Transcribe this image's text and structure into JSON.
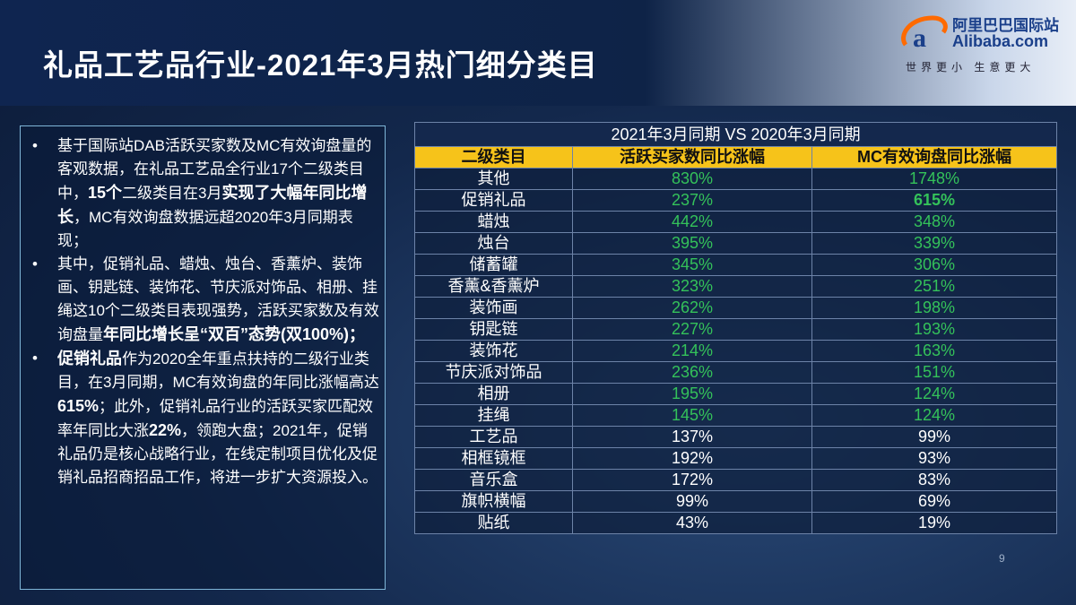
{
  "header": {
    "title": "礼品工艺品行业-2021年3月热门细分类目",
    "logo": {
      "cn": "阿里巴巴国际站",
      "en": "Alibaba.com",
      "slogan": "世界更小 生意更大"
    }
  },
  "bullets": [
    [
      {
        "text": "基于国际站DAB活跃买家数及MC有效询盘量的客观数据，在礼品工艺品全行业17个二级类目中，",
        "bold": false
      },
      {
        "text": "15个",
        "bold": true
      },
      {
        "text": "二级类目在3月",
        "bold": false
      },
      {
        "text": "实现了大幅年同比增长",
        "bold": true
      },
      {
        "text": "，MC有效询盘数据远超2020年3月同期表现；",
        "bold": false
      }
    ],
    [
      {
        "text": "其中，促销礼品、蜡烛、烛台、香薰炉、装饰画、钥匙链、装饰花、节庆派对饰品、相册、挂绳这10个二级类目表现强势，活跃买家数及有效询盘量",
        "bold": false
      },
      {
        "text": "年同比增长呈“双百”态势(双100%)；",
        "bold": true
      }
    ],
    [
      {
        "text": "促销礼品",
        "bold": true
      },
      {
        "text": "作为2020全年重点扶持的二级行业类目，在3月同期，MC有效询盘的年同比涨幅高达",
        "bold": false
      },
      {
        "text": "615%",
        "bold": true
      },
      {
        "text": "；此外，促销礼品行业的活跃买家匹配效率年同比大涨",
        "bold": false
      },
      {
        "text": "22%",
        "bold": true
      },
      {
        "text": "，领跑大盘；2021年，促销礼品仍是核心战略行业，在线定制项目优化及促销礼品招商招品工作，将进一步扩大资源投入。",
        "bold": false
      }
    ]
  ],
  "table": {
    "caption": "2021年3月同期 VS 2020年3月同期",
    "columns": [
      "二级类目",
      "活跃买家数同比涨幅",
      "MC有效询盘同比涨幅"
    ],
    "rows": [
      {
        "cells": [
          "其他",
          "830%",
          "1748%"
        ],
        "color": "#34c25a"
      },
      {
        "cells": [
          "促销礼品",
          "237%",
          "615%"
        ],
        "color": "#34c25a",
        "bold_cell": 2
      },
      {
        "cells": [
          "蜡烛",
          "442%",
          "348%"
        ],
        "color": "#34c25a"
      },
      {
        "cells": [
          "烛台",
          "395%",
          "339%"
        ],
        "color": "#34c25a"
      },
      {
        "cells": [
          "储蓄罐",
          "345%",
          "306%"
        ],
        "color": "#34c25a"
      },
      {
        "cells": [
          "香薰&香薰炉",
          "323%",
          "251%"
        ],
        "color": "#34c25a"
      },
      {
        "cells": [
          "装饰画",
          "262%",
          "198%"
        ],
        "color": "#34c25a"
      },
      {
        "cells": [
          "钥匙链",
          "227%",
          "193%"
        ],
        "color": "#34c25a"
      },
      {
        "cells": [
          "装饰花",
          "214%",
          "163%"
        ],
        "color": "#34c25a"
      },
      {
        "cells": [
          "节庆派对饰品",
          "236%",
          "151%"
        ],
        "color": "#34c25a"
      },
      {
        "cells": [
          "相册",
          "195%",
          "124%"
        ],
        "color": "#34c25a"
      },
      {
        "cells": [
          "挂绳",
          "145%",
          "124%"
        ],
        "color": "#34c25a"
      },
      {
        "cells": [
          "工艺品",
          "137%",
          "99%"
        ],
        "color": "#ffffff"
      },
      {
        "cells": [
          "相框镜框",
          "192%",
          "93%"
        ],
        "color": "#ffffff"
      },
      {
        "cells": [
          "音乐盒",
          "172%",
          "83%"
        ],
        "color": "#ffffff"
      },
      {
        "cells": [
          "旗帜横幅",
          "99%",
          "69%"
        ],
        "color": "#ffffff"
      },
      {
        "cells": [
          "贴纸",
          "43%",
          "19%"
        ],
        "color": "#ffffff"
      }
    ]
  },
  "page_number": "9"
}
